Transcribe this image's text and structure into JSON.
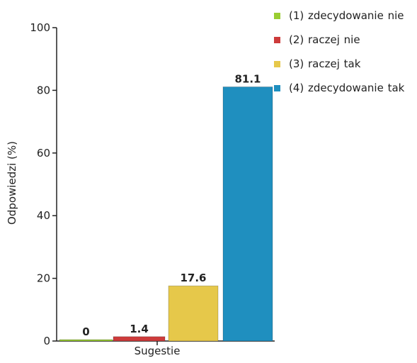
{
  "chart_data": {
    "type": "bar",
    "categories": [
      "(1) zdecydowanie nie",
      "(2) raczej nie",
      "(3) raczej tak",
      "(4) zdecydowanie tak"
    ],
    "values": [
      0,
      1.4,
      17.6,
      81.1
    ],
    "value_labels": [
      "0",
      "1.4",
      "17.6",
      "81.1"
    ],
    "colors": [
      "#9acd32",
      "#cd3b3b",
      "#e6c84a",
      "#1f8fbf"
    ],
    "xlabel": "Sugestie",
    "ylabel": "Odpowiedzi (%)",
    "ylim": [
      0,
      100
    ],
    "yticks": [
      0,
      20,
      40,
      60,
      80,
      100
    ],
    "grid": false,
    "legend_position": "right"
  },
  "legend": {
    "items": [
      {
        "label": "(1) zdecydowanie nie",
        "color": "#9acd32"
      },
      {
        "label": "(2) raczej nie",
        "color": "#cd3b3b"
      },
      {
        "label": "(3) raczej tak",
        "color": "#e6c84a"
      },
      {
        "label": "(4) zdecydowanie tak",
        "color": "#1f8fbf"
      }
    ]
  }
}
